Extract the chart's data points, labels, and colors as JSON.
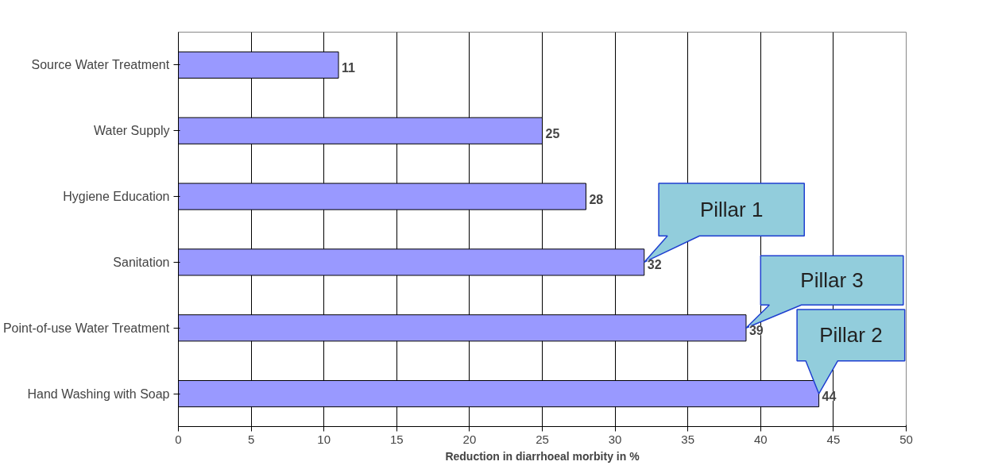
{
  "chart_data": {
    "type": "bar",
    "orientation": "horizontal",
    "xlabel": "Reduction in diarrhoeal morbity in %",
    "categories": [
      "Source Water Treatment",
      "Water Supply",
      "Hygiene Education",
      "Sanitation",
      "Point-of-use Water Treatment",
      "Hand Washing with Soap"
    ],
    "values": [
      11,
      25,
      28,
      32,
      39,
      44
    ],
    "color": "#9999ff",
    "data_labels": true,
    "xlim": [
      0,
      50
    ],
    "xticks": [
      0,
      5,
      10,
      15,
      20,
      25,
      30,
      35,
      40,
      45,
      50
    ],
    "grid": "x",
    "annotations": [
      "Pillar 1",
      "Pillar 3",
      "Pillar 2"
    ]
  }
}
